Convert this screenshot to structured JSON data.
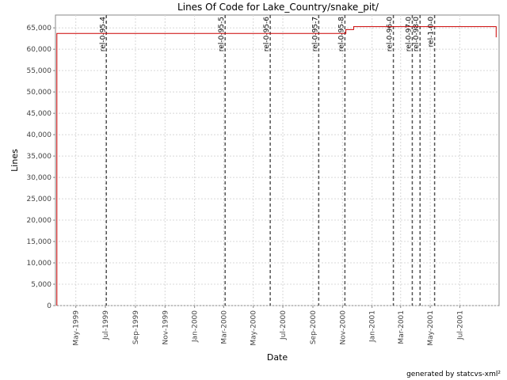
{
  "chart_data": {
    "type": "line",
    "title": "Lines Of Code for Lake_Country/snake_pit/",
    "xlabel": "Date",
    "ylabel": "Lines",
    "footer": "generated by statcvs-xml²",
    "grid": true,
    "line_color": "#cc0000",
    "marker_color": "#555555",
    "ylim": [
      0,
      68000
    ],
    "xlim": [
      "1999-03-20",
      "2001-09-20"
    ],
    "y_ticks": [
      0,
      5000,
      10000,
      15000,
      20000,
      25000,
      30000,
      35000,
      40000,
      45000,
      50000,
      55000,
      60000,
      65000
    ],
    "y_tick_labels": [
      "0",
      "5,000",
      "10,000",
      "15,000",
      "20,000",
      "25,000",
      "30,000",
      "35,000",
      "40,000",
      "45,000",
      "50,000",
      "55,000",
      "60,000",
      "65,000"
    ],
    "x_ticks": [
      "1999-05-01",
      "1999-07-01",
      "1999-09-01",
      "1999-11-01",
      "2000-01-01",
      "2000-03-01",
      "2000-05-01",
      "2000-07-01",
      "2000-09-01",
      "2000-11-01",
      "2001-01-01",
      "2001-03-01",
      "2001-05-01",
      "2001-07-01"
    ],
    "x_tick_labels": [
      "May-1999",
      "Jul-1999",
      "Sep-1999",
      "Nov-1999",
      "Jan-2000",
      "Mar-2000",
      "May-2000",
      "Jul-2000",
      "Sep-2000",
      "Nov-2000",
      "Jan-2001",
      "Mar-2001",
      "May-2001",
      "Jul-2001"
    ],
    "series": [
      {
        "x": [
          "1999-03-23",
          "1999-03-23",
          "2000-11-08",
          "2000-11-08",
          "2000-11-24",
          "2000-11-24",
          "2001-09-14",
          "2001-09-14"
        ],
        "values": [
          0,
          63700,
          63700,
          64600,
          64600,
          65300,
          65300,
          62800
        ]
      }
    ],
    "markers": [
      {
        "x": "1999-07-03",
        "label": "rel-0-95-4"
      },
      {
        "x": "2000-03-04",
        "label": "rel-0-95-5"
      },
      {
        "x": "2000-06-05",
        "label": "rel-0-95-6"
      },
      {
        "x": "2000-09-13",
        "label": "rel-0-95-7"
      },
      {
        "x": "2000-11-06",
        "label": "rel-0-95-8"
      },
      {
        "x": "2001-02-14",
        "label": "rel-0-96-0"
      },
      {
        "x": "2001-03-25",
        "label": "rel-0-97-0"
      },
      {
        "x": "2001-04-10",
        "label": "rel-0-98-0"
      },
      {
        "x": "2001-05-10",
        "label": "rel-1-0-0"
      }
    ]
  }
}
